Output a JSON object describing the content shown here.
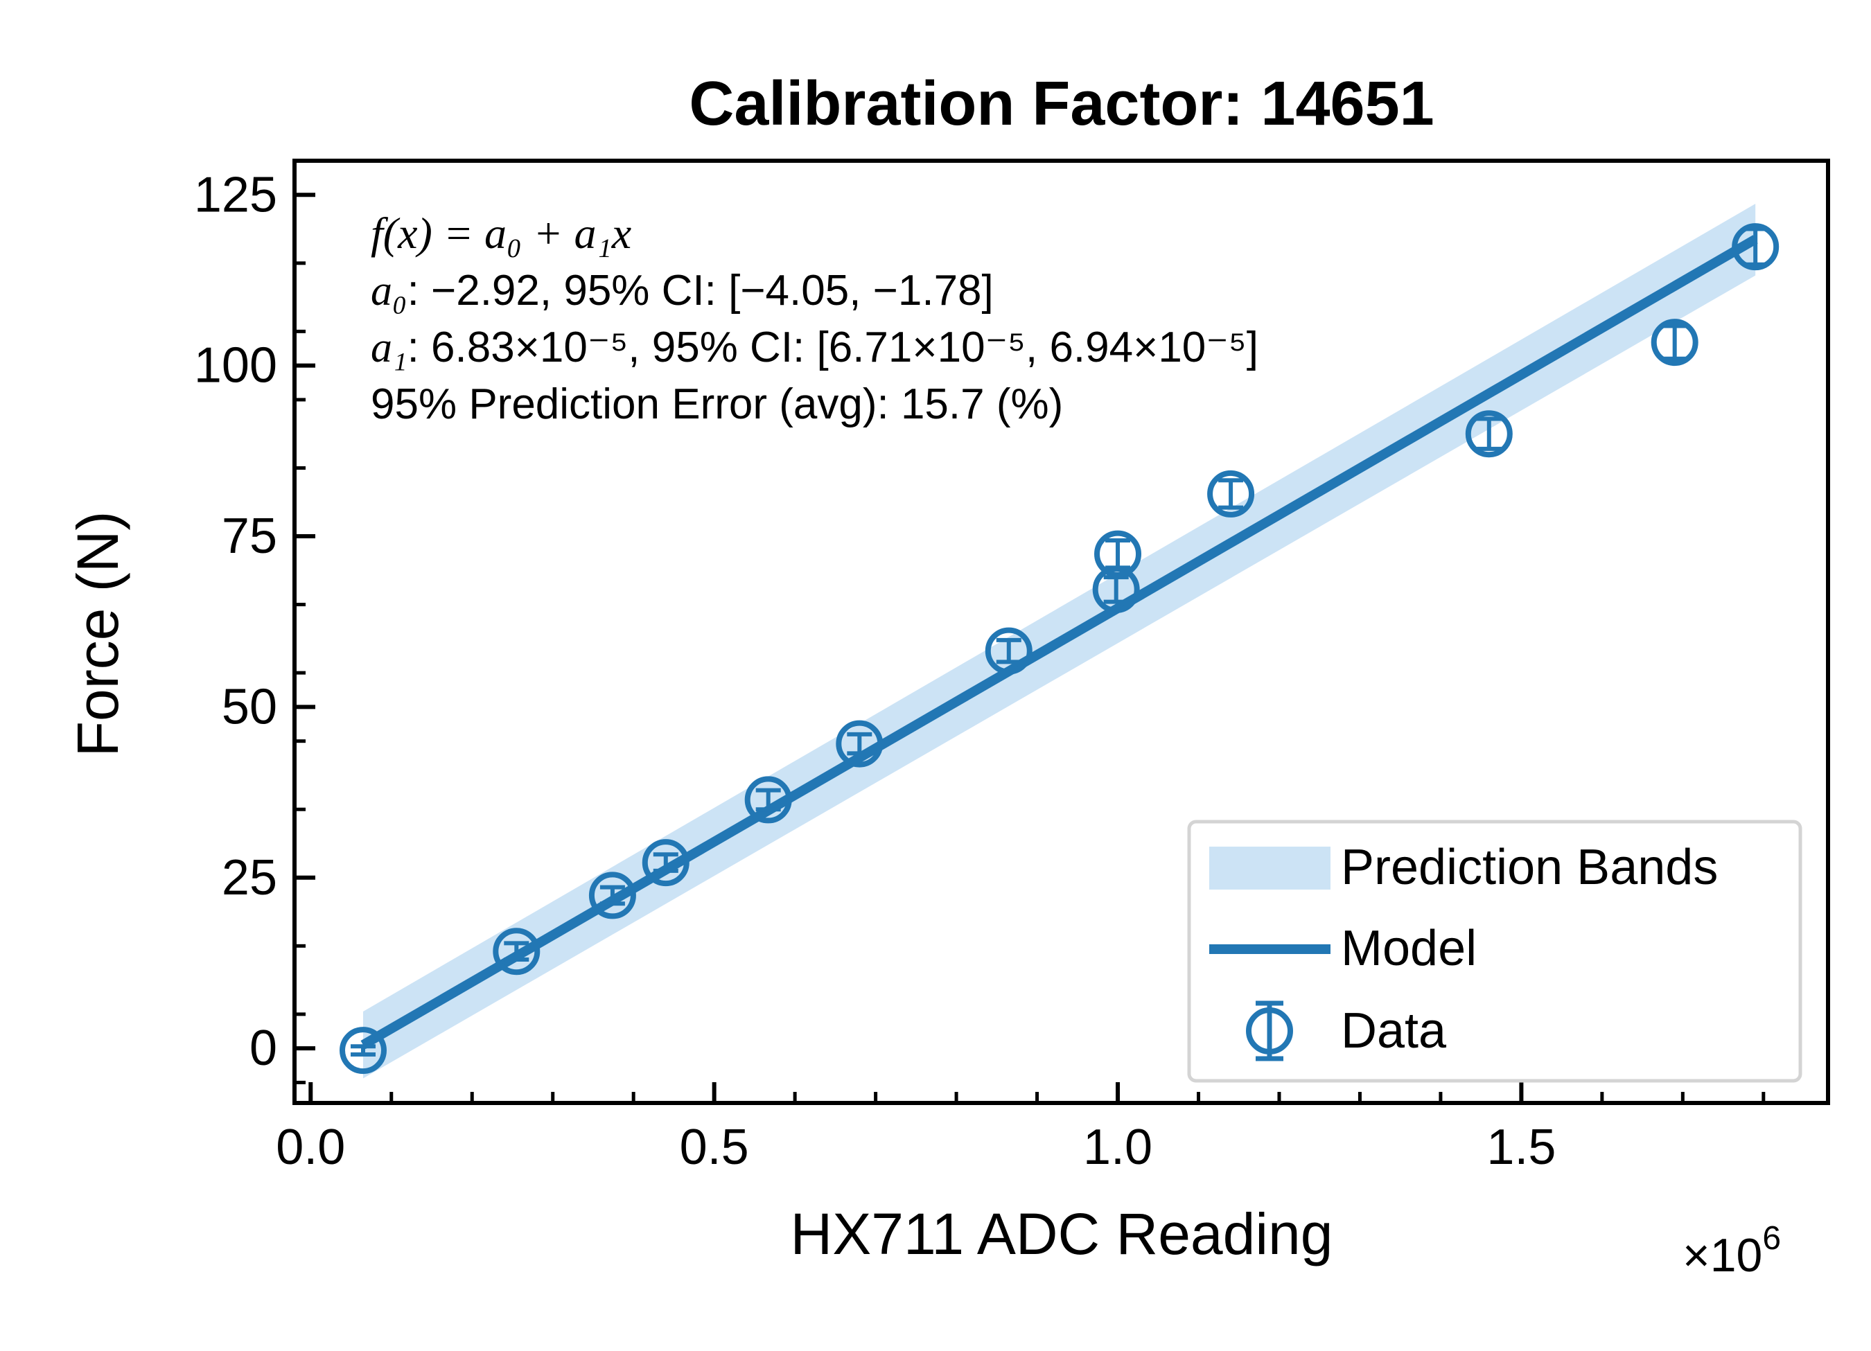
{
  "chart_data": {
    "type": "scatter",
    "title": "Calibration Factor: 14651",
    "xlabel": "HX711 ADC Reading",
    "ylabel": "Force (N)",
    "x_multiplier": "×10",
    "x_multiplier_exp": "6",
    "xlim": [
      -0.02,
      1.88
    ],
    "ylim": [
      -8,
      130
    ],
    "x_ticks": [
      0.0,
      0.5,
      1.0,
      1.5
    ],
    "x_tick_labels": [
      "0.0",
      "0.5",
      "1.0",
      "1.5"
    ],
    "y_ticks": [
      0,
      25,
      50,
      75,
      100,
      125
    ],
    "y_tick_labels": [
      "0",
      "25",
      "50",
      "75",
      "100",
      "125"
    ],
    "grid": false,
    "legend_position": "bottom-right",
    "colors": {
      "data": "#2277b4",
      "band": "#cce3f5"
    },
    "annotation": {
      "formula_italic": "f(x) = a₀ + a₁x",
      "a0_symbol": "a₀",
      "a0_text": ": −2.92, 95% CI: [−4.05, −1.78]",
      "a1_symbol": "a₁",
      "a1_text": ": 6.83×10⁻⁵, 95% CI: [6.71×10⁻⁵, 6.94×10⁻⁵]",
      "error_text": "95% Prediction Error (avg): 15.7 (%)"
    },
    "series": [
      {
        "name": "Prediction Bands",
        "type": "band",
        "x": [
          0.065,
          1.79
        ],
        "lower": [
          -4.4,
          113.2
        ],
        "upper": [
          5.4,
          123.7
        ]
      },
      {
        "name": "Model",
        "type": "line",
        "x": [
          0.065,
          1.79
        ],
        "y": [
          0.5,
          118.5
        ]
      },
      {
        "name": "Data",
        "type": "errorbar",
        "x": [
          0.065,
          0.255,
          0.374,
          0.44,
          0.567,
          0.68,
          0.865,
          0.998,
          1.0,
          1.14,
          1.46,
          1.69,
          1.79
        ],
        "y": [
          -0.3,
          14.2,
          22.4,
          27.2,
          36.4,
          44.6,
          58.2,
          67.2,
          72.4,
          81.2,
          90.0,
          103.4,
          117.4
        ],
        "yerr": [
          0.6,
          1.2,
          1.2,
          1.2,
          1.4,
          1.4,
          1.6,
          1.8,
          2.0,
          2.0,
          2.2,
          2.4,
          2.6
        ]
      }
    ]
  }
}
